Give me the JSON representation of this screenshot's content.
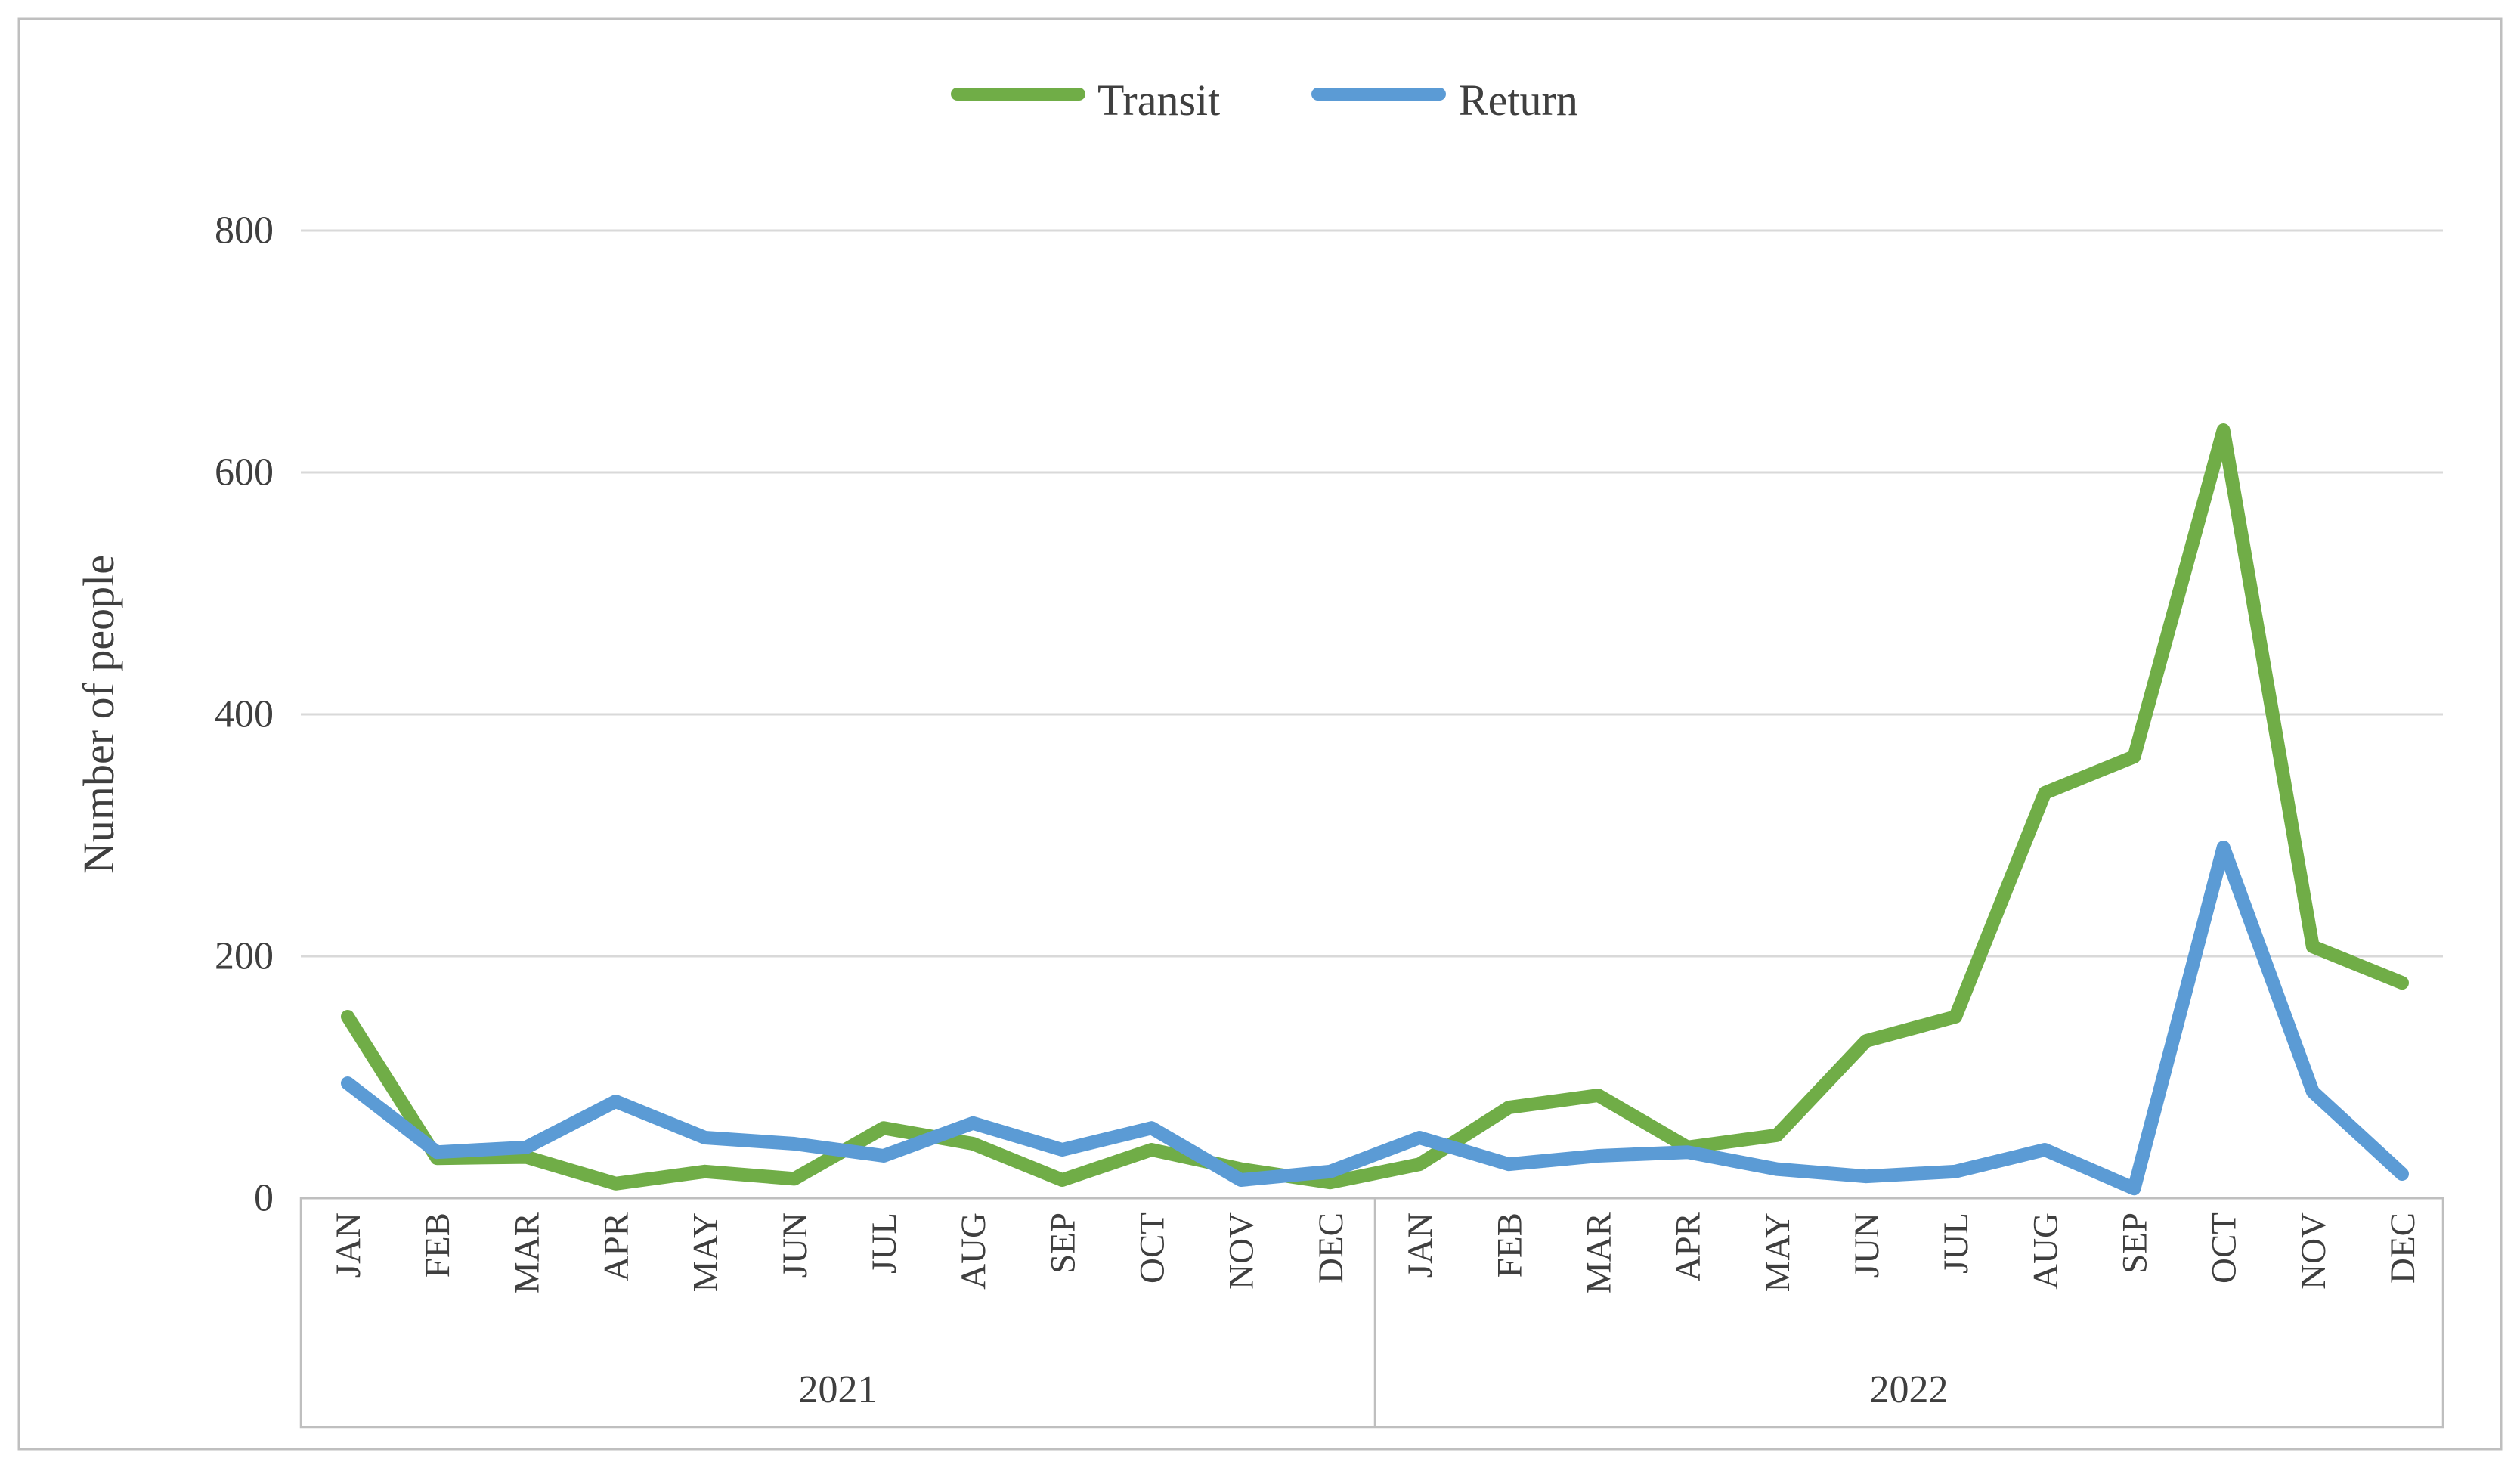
{
  "figure": {
    "background": "#FFFFFF",
    "border_color": "#BFBFBF",
    "text_color": "#3F3F3F",
    "gridline_color": "#D9D9D9",
    "axis_line_color": "#BFBFBF"
  },
  "chart_data": {
    "type": "line",
    "title": "",
    "xlabel": "",
    "ylabel": "Number of people",
    "ylim": [
      0,
      800
    ],
    "yticks": [
      0,
      200,
      400,
      600,
      800
    ],
    "grid": true,
    "legend_position": "top-center",
    "categories": [
      "JAN",
      "FEB",
      "MAR",
      "APR",
      "MAY",
      "JUN",
      "JUL",
      "AUG",
      "SEP",
      "OCT",
      "NOV",
      "DEC",
      "JAN",
      "FEB",
      "MAR",
      "APR",
      "MAY",
      "JUN",
      "JUL",
      "AUG",
      "SEP",
      "OCT",
      "NOV",
      "DEC"
    ],
    "x_groups": [
      {
        "label": "2021",
        "start": 0,
        "end": 11
      },
      {
        "label": "2022",
        "start": 12,
        "end": 23
      }
    ],
    "series": [
      {
        "name": "Transit",
        "color": "#70AD47",
        "values": [
          150,
          33,
          34,
          12,
          22,
          16,
          58,
          45,
          15,
          40,
          24,
          13,
          28,
          75,
          85,
          42,
          52,
          130,
          150,
          335,
          365,
          635,
          208,
          178
        ]
      },
      {
        "name": "Return",
        "color": "#5B9BD5",
        "values": [
          95,
          38,
          42,
          80,
          50,
          45,
          35,
          62,
          40,
          58,
          15,
          22,
          50,
          28,
          35,
          38,
          24,
          18,
          22,
          40,
          8,
          290,
          88,
          20
        ]
      }
    ]
  }
}
